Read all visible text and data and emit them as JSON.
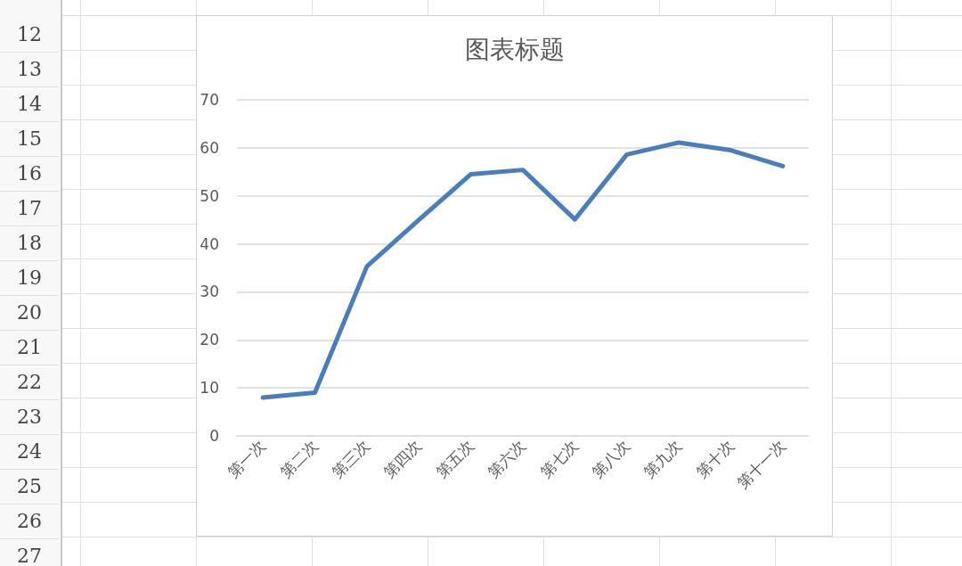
{
  "chart_data": {
    "type": "line",
    "title": "图表标题",
    "categories": [
      "第一次",
      "第二次",
      "第三次",
      "第四次",
      "第五次",
      "第六次",
      "第七次",
      "第八次",
      "第九次",
      "第十次",
      "第十一次"
    ],
    "series": [
      {
        "color": "#4a7ebb",
        "values": [
          8,
          9,
          35.3,
          45,
          54.5,
          55.4,
          45.1,
          58.6,
          61.1,
          59.5,
          56.2
        ]
      }
    ],
    "ylim": [
      0,
      70
    ],
    "yticks": [
      0,
      10,
      20,
      30,
      40,
      50,
      60,
      70
    ],
    "grid": "y",
    "marker": "none",
    "line_style": "solid",
    "annotations": [
      "12",
      "13",
      "14",
      "15",
      "16",
      "17",
      "18",
      "19",
      "20",
      "21",
      "22",
      "23",
      "24",
      "25",
      "26",
      "27"
    ]
  }
}
